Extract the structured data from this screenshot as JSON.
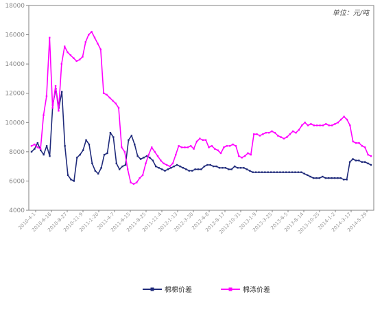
{
  "chart_data": {
    "type": "line",
    "unit_label": "单位：元/吨",
    "ylim": [
      4000,
      18000
    ],
    "y_ticks": [
      "4000",
      "6000",
      "8000",
      "10000",
      "12000",
      "14000",
      "16000",
      "18000"
    ],
    "x_tick_labels": [
      "2010-4-1",
      "2010-6-16",
      "2010-8-27",
      "2010-11-9",
      "2011-1-20",
      "2011-4-7",
      "2011-6-15",
      "2011-8-25",
      "2011-11-4",
      "2012-1-13",
      "2012-3-30",
      "2012-6-8",
      "2012-8-17",
      "2012-10-31",
      "2013-1-9",
      "2013-3-25",
      "2013-6-5",
      "2013-8-14",
      "2013-10-25",
      "2014-1-2",
      "2014-3-17",
      "2014-5-29"
    ],
    "legend_position": "bottom",
    "grid": false,
    "colors": {
      "series1": "#1f2a7a",
      "series2": "#ff00ff"
    },
    "series": [
      {
        "name": "棉棉价差",
        "values": [
          8000,
          8200,
          8600,
          8100,
          7800,
          8400,
          7700,
          11200,
          12300,
          11000,
          12100,
          8400,
          6400,
          6100,
          6000,
          7600,
          7800,
          8100,
          8800,
          8500,
          7200,
          6700,
          6500,
          6900,
          7800,
          7900,
          9300,
          9000,
          7200,
          6800,
          7000,
          7100,
          8800,
          9100,
          8500,
          7700,
          7500,
          7600,
          7700,
          7600,
          7400,
          7000,
          6900,
          6800,
          6700,
          6800,
          6900,
          7000,
          7100,
          7000,
          6900,
          6800,
          6700,
          6700,
          6800,
          6800,
          6800,
          7000,
          7100,
          7100,
          7000,
          7000,
          6900,
          6900,
          6900,
          6800,
          6800,
          7000,
          6900,
          6900,
          6900,
          6800,
          6700,
          6600,
          6600,
          6600,
          6600,
          6600,
          6600,
          6600,
          6600,
          6600,
          6600,
          6600,
          6600,
          6600,
          6600,
          6600,
          6600,
          6600,
          6500,
          6400,
          6300,
          6200,
          6200,
          6200,
          6300,
          6200,
          6200,
          6200,
          6200,
          6200,
          6200,
          6100,
          6100,
          7300,
          7500,
          7400,
          7400,
          7300,
          7300,
          7200,
          7100
        ]
      },
      {
        "name": "棉涤价差",
        "values": [
          8400,
          8500,
          8300,
          8200,
          10500,
          11800,
          15800,
          11000,
          12500,
          10800,
          14000,
          15200,
          14800,
          14600,
          14400,
          14200,
          14300,
          14500,
          15500,
          16000,
          16200,
          15800,
          15400,
          15000,
          12000,
          11900,
          11700,
          11500,
          11300,
          11000,
          8300,
          8000,
          6800,
          5900,
          5800,
          5900,
          6200,
          6400,
          7200,
          7800,
          8300,
          8000,
          7700,
          7400,
          7200,
          7100,
          7000,
          7200,
          7800,
          8400,
          8300,
          8300,
          8300,
          8400,
          8200,
          8700,
          8900,
          8800,
          8800,
          8300,
          8400,
          8200,
          8100,
          7900,
          8300,
          8400,
          8400,
          8500,
          8400,
          7700,
          7600,
          7700,
          7900,
          7800,
          9200,
          9200,
          9100,
          9200,
          9300,
          9300,
          9400,
          9300,
          9100,
          9000,
          8900,
          9000,
          9200,
          9400,
          9300,
          9500,
          9800,
          10000,
          9800,
          9900,
          9800,
          9800,
          9800,
          9800,
          9900,
          9800,
          9800,
          9900,
          10000,
          10200,
          10400,
          10200,
          9800,
          8700,
          8600,
          8600,
          8400,
          8300,
          7800,
          7700
        ]
      }
    ]
  }
}
